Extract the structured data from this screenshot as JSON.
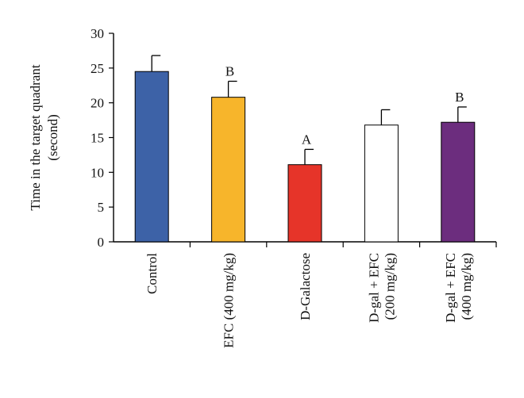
{
  "chart_data": {
    "type": "bar",
    "title": "",
    "xlabel": "",
    "ylabel": [
      "Time in the target quadrant",
      "(second)"
    ],
    "ylim": [
      0,
      30
    ],
    "yticks": [
      0,
      5,
      10,
      15,
      20,
      25,
      30
    ],
    "grid": false,
    "legend": "none",
    "categories": [
      [
        "Control"
      ],
      [
        "EFC (400 mg/kg)"
      ],
      [
        "D-Galactose"
      ],
      [
        "D-gal + EFC",
        "(200 mg/kg)"
      ],
      [
        "D-gal + EFC",
        "(400 mg/kg)"
      ]
    ],
    "values": [
      24.5,
      20.8,
      11.1,
      16.8,
      17.2
    ],
    "errors": [
      2.3,
      2.3,
      2.2,
      2.2,
      2.2
    ],
    "annotations": [
      "",
      "B",
      "A",
      "",
      "B"
    ],
    "colors": [
      "#3d62a7",
      "#f7b52b",
      "#e63429",
      "#ffffff",
      "#6c2d7e"
    ]
  }
}
